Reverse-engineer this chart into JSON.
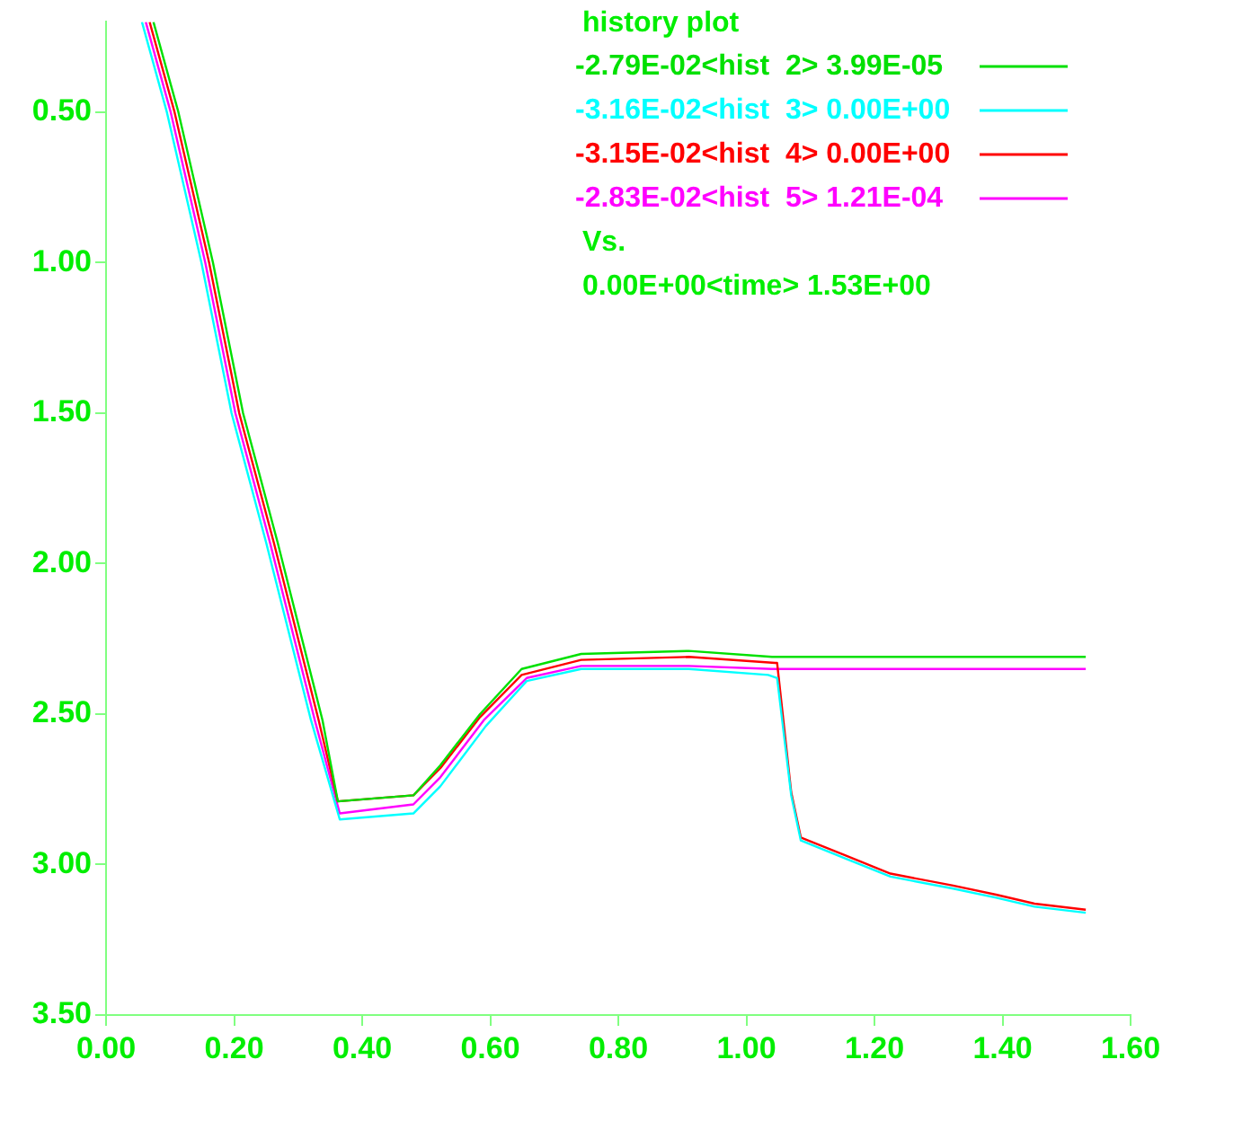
{
  "chart_data": {
    "type": "line",
    "title": "history plot",
    "xlim": [
      0,
      1.6
    ],
    "ylim": [
      3.5,
      0.2
    ],
    "xticks": [
      {
        "value": 0,
        "label": "0.00"
      },
      {
        "value": 0.2,
        "label": "0.20"
      },
      {
        "value": 0.4,
        "label": "0.40"
      },
      {
        "value": 0.6,
        "label": "0.60"
      },
      {
        "value": 0.8,
        "label": "0.80"
      },
      {
        "value": 1,
        "label": "1.00"
      },
      {
        "value": 1.2,
        "label": "1.20"
      },
      {
        "value": 1.4,
        "label": "1.40"
      },
      {
        "value": 1.6,
        "label": "1.60"
      }
    ],
    "yticks": [
      {
        "value": 0.5,
        "label": "0.50"
      },
      {
        "value": 1,
        "label": "1.00"
      },
      {
        "value": 1.5,
        "label": "1.50"
      },
      {
        "value": 2,
        "label": "2.00"
      },
      {
        "value": 2.5,
        "label": "2.50"
      },
      {
        "value": 3,
        "label": "3.00"
      },
      {
        "value": 3.5,
        "label": "3.50"
      }
    ],
    "grid": false,
    "legend": "top right",
    "marker": "none",
    "line_style": "solid",
    "annotations": [
      "Vs.",
      "0.00E+00<time> 1.53E+00"
    ],
    "series": [
      {
        "name": "-2.79E-02<hist  2> 3.99E-05",
        "color": "#00e000",
        "x": [
          0.074,
          0.113,
          0.167,
          0.214,
          0.268,
          0.338,
          0.362,
          0.48,
          0.522,
          0.584,
          0.649,
          0.742,
          0.91,
          1.04,
          1.53
        ],
        "values": [
          0.2,
          0.5,
          1.0,
          1.5,
          1.93,
          2.52,
          2.79,
          2.77,
          2.67,
          2.5,
          2.35,
          2.3,
          2.29,
          2.31,
          2.31
        ]
      },
      {
        "name": "-3.16E-02<hist  3> 0.00E+00",
        "color": "#00ffff",
        "x": [
          0.056,
          0.095,
          0.149,
          0.196,
          0.25,
          0.32,
          0.365,
          0.48,
          0.522,
          0.593,
          0.657,
          0.742,
          0.91,
          1.034,
          1.048,
          1.07,
          1.085,
          1.155,
          1.225,
          1.323,
          1.39,
          1.45,
          1.53
        ],
        "values": [
          0.2,
          0.5,
          1.0,
          1.5,
          1.93,
          2.52,
          2.85,
          2.83,
          2.74,
          2.54,
          2.39,
          2.35,
          2.35,
          2.37,
          2.38,
          2.77,
          2.92,
          2.98,
          3.04,
          3.08,
          3.11,
          3.14,
          3.16
        ]
      },
      {
        "name": "-3.15E-02<hist  4> 0.00E+00",
        "color": "#ff0000",
        "x": [
          0.068,
          0.107,
          0.161,
          0.208,
          0.262,
          0.332,
          0.362,
          0.48,
          0.522,
          0.584,
          0.649,
          0.742,
          0.91,
          1.045,
          1.048,
          1.07,
          1.085,
          1.155,
          1.225,
          1.323,
          1.39,
          1.45,
          1.53
        ],
        "values": [
          0.2,
          0.5,
          1.0,
          1.5,
          1.93,
          2.52,
          2.79,
          2.77,
          2.68,
          2.51,
          2.37,
          2.32,
          2.31,
          2.33,
          2.33,
          2.76,
          2.91,
          2.97,
          3.03,
          3.07,
          3.1,
          3.13,
          3.15
        ]
      },
      {
        "name": "-2.83E-02<hist  5> 1.21E-04",
        "color": "#ff00ff",
        "x": [
          0.062,
          0.101,
          0.155,
          0.202,
          0.256,
          0.326,
          0.365,
          0.48,
          0.522,
          0.59,
          0.657,
          0.742,
          0.91,
          1.04,
          1.53
        ],
        "values": [
          0.2,
          0.5,
          1.0,
          1.5,
          1.93,
          2.52,
          2.83,
          2.8,
          2.71,
          2.52,
          2.38,
          2.34,
          2.34,
          2.35,
          2.35
        ]
      }
    ]
  }
}
